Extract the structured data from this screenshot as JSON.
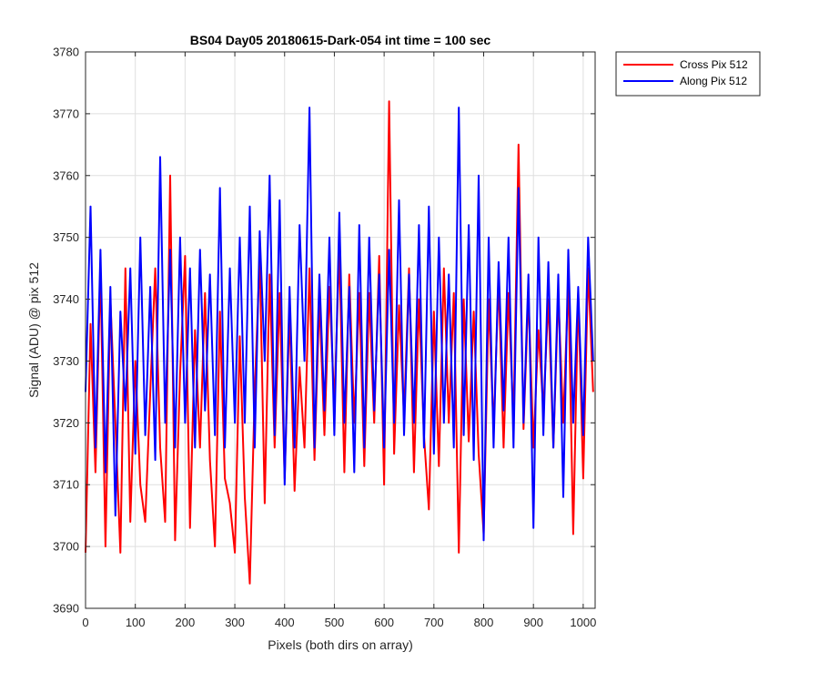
{
  "chart_data": {
    "type": "line",
    "title": "BS04 Day05 20180615-Dark-054 int time = 100 sec",
    "xlabel": "Pixels (both dirs on array)",
    "ylabel": "Signal (ADU) @ pix 512",
    "xlim": [
      0,
      1024
    ],
    "ylim": [
      3690,
      3780
    ],
    "xticks": [
      0,
      100,
      200,
      300,
      400,
      500,
      600,
      700,
      800,
      900,
      1000
    ],
    "yticks": [
      3690,
      3700,
      3710,
      3720,
      3730,
      3740,
      3750,
      3760,
      3770,
      3780
    ],
    "grid": true,
    "legend_position": "outside-top-right",
    "series": [
      {
        "name": "Cross Pix 512",
        "color": "#ff0000",
        "x": [
          0,
          10,
          20,
          30,
          40,
          50,
          60,
          70,
          80,
          90,
          100,
          110,
          120,
          130,
          140,
          150,
          160,
          170,
          180,
          190,
          200,
          210,
          220,
          230,
          240,
          250,
          260,
          270,
          280,
          290,
          300,
          310,
          320,
          330,
          340,
          350,
          360,
          370,
          380,
          390,
          400,
          410,
          420,
          430,
          440,
          450,
          460,
          470,
          480,
          490,
          500,
          510,
          520,
          530,
          540,
          550,
          560,
          570,
          580,
          590,
          600,
          610,
          620,
          630,
          640,
          650,
          660,
          670,
          680,
          690,
          700,
          710,
          720,
          730,
          740,
          750,
          760,
          770,
          780,
          790,
          800,
          810,
          820,
          830,
          840,
          850,
          860,
          870,
          880,
          890,
          900,
          910,
          920,
          930,
          940,
          950,
          960,
          970,
          980,
          990,
          1000,
          1010,
          1020
        ],
        "values": [
          3699,
          3736,
          3712,
          3745,
          3700,
          3740,
          3720,
          3699,
          3745,
          3704,
          3730,
          3710,
          3704,
          3725,
          3745,
          3716,
          3704,
          3760,
          3701,
          3728,
          3747,
          3703,
          3735,
          3716,
          3741,
          3714,
          3700,
          3738,
          3711,
          3707,
          3699,
          3734,
          3708,
          3694,
          3725,
          3747,
          3707,
          3744,
          3716,
          3741,
          3711,
          3738,
          3709,
          3729,
          3716,
          3745,
          3714,
          3740,
          3718,
          3742,
          3723,
          3748,
          3712,
          3744,
          3720,
          3741,
          3713,
          3741,
          3720,
          3747,
          3710,
          3772,
          3715,
          3739,
          3721,
          3745,
          3712,
          3740,
          3718,
          3706,
          3738,
          3713,
          3745,
          3720,
          3741,
          3699,
          3740,
          3717,
          3738,
          3715,
          3702,
          3740,
          3719,
          3743,
          3716,
          3741,
          3720,
          3765,
          3719,
          3741,
          3716,
          3735,
          3722,
          3740,
          3716,
          3741,
          3720,
          3743,
          3702,
          3741,
          3711,
          3745,
          3725
        ]
      },
      {
        "name": "Along Pix 512",
        "color": "#0000ff",
        "x": [
          0,
          10,
          20,
          30,
          40,
          50,
          60,
          70,
          80,
          90,
          100,
          110,
          120,
          130,
          140,
          150,
          160,
          170,
          180,
          190,
          200,
          210,
          220,
          230,
          240,
          250,
          260,
          270,
          280,
          290,
          300,
          310,
          320,
          330,
          340,
          350,
          360,
          370,
          380,
          390,
          400,
          410,
          420,
          430,
          440,
          450,
          460,
          470,
          480,
          490,
          500,
          510,
          520,
          530,
          540,
          550,
          560,
          570,
          580,
          590,
          600,
          610,
          620,
          630,
          640,
          650,
          660,
          670,
          680,
          690,
          700,
          710,
          720,
          730,
          740,
          750,
          760,
          770,
          780,
          790,
          800,
          810,
          820,
          830,
          840,
          850,
          860,
          870,
          880,
          890,
          900,
          910,
          920,
          930,
          940,
          950,
          960,
          970,
          980,
          990,
          1000,
          1010,
          1020
        ],
        "values": [
          3725,
          3755,
          3716,
          3748,
          3712,
          3742,
          3705,
          3738,
          3722,
          3745,
          3715,
          3750,
          3718,
          3742,
          3714,
          3763,
          3720,
          3748,
          3716,
          3750,
          3720,
          3745,
          3716,
          3748,
          3722,
          3744,
          3718,
          3758,
          3716,
          3745,
          3720,
          3750,
          3720,
          3755,
          3716,
          3751,
          3730,
          3760,
          3718,
          3756,
          3710,
          3742,
          3716,
          3752,
          3730,
          3771,
          3716,
          3744,
          3722,
          3750,
          3718,
          3754,
          3720,
          3742,
          3712,
          3752,
          3716,
          3750,
          3722,
          3744,
          3716,
          3748,
          3720,
          3756,
          3718,
          3744,
          3720,
          3752,
          3716,
          3755,
          3715,
          3750,
          3720,
          3744,
          3716,
          3771,
          3718,
          3752,
          3714,
          3760,
          3701,
          3750,
          3716,
          3746,
          3722,
          3750,
          3716,
          3758,
          3720,
          3744,
          3703,
          3750,
          3718,
          3746,
          3716,
          3744,
          3708,
          3748,
          3720,
          3742,
          3718,
          3750,
          3730
        ]
      }
    ]
  }
}
